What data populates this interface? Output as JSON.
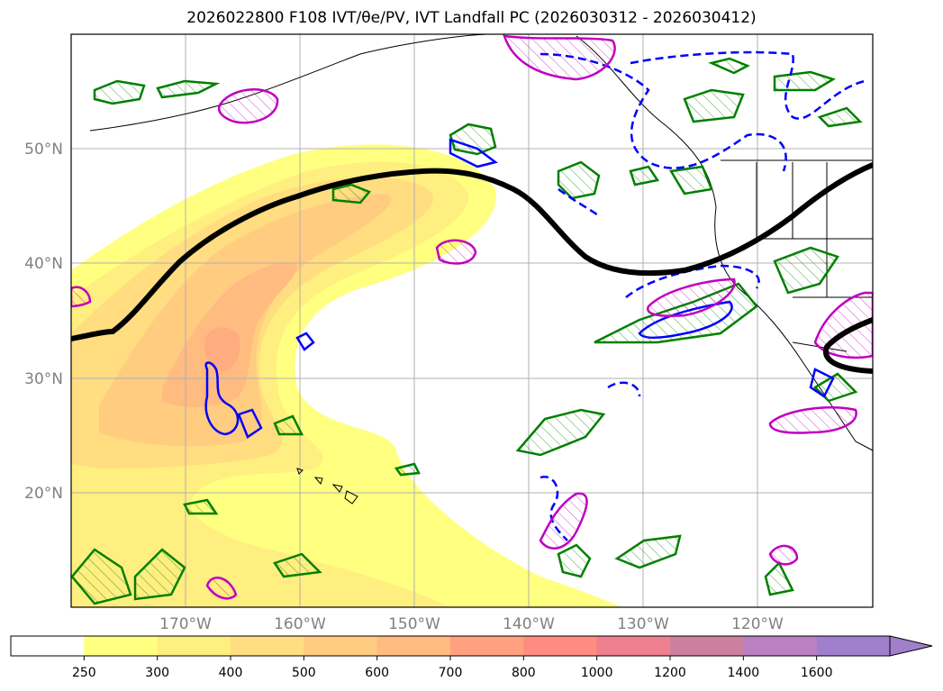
{
  "title": "2026022800 F108 IVT/θe/PV, IVT Landfall PC (2026030312 - 2026030412)",
  "axes": {
    "lat_labels": [
      "50°N",
      "40°N",
      "30°N",
      "20°N"
    ],
    "lon_labels": [
      "170°W",
      "160°W",
      "150°W",
      "140°W",
      "130°W",
      "120°W"
    ]
  },
  "colorbar": {
    "ticks": [
      "250",
      "300",
      "400",
      "500",
      "600",
      "700",
      "800",
      "1000",
      "1200",
      "1400",
      "1600"
    ],
    "colors": [
      "#ffffff",
      "#ffff80",
      "#ffee80",
      "#ffdd80",
      "#ffcc80",
      "#ffbb80",
      "#ffa080",
      "#ff8c80",
      "#ee8090",
      "#cc80a0",
      "#bb80c0",
      "#a080cc"
    ]
  },
  "style": {
    "ocean_bg": "#ffffff",
    "grid": "#b0b0b0",
    "tick_text": "#808080",
    "contour_green": "#008000",
    "contour_blue": "#0000ff",
    "contour_magenta": "#c000c0",
    "pv_line": "#000000"
  }
}
